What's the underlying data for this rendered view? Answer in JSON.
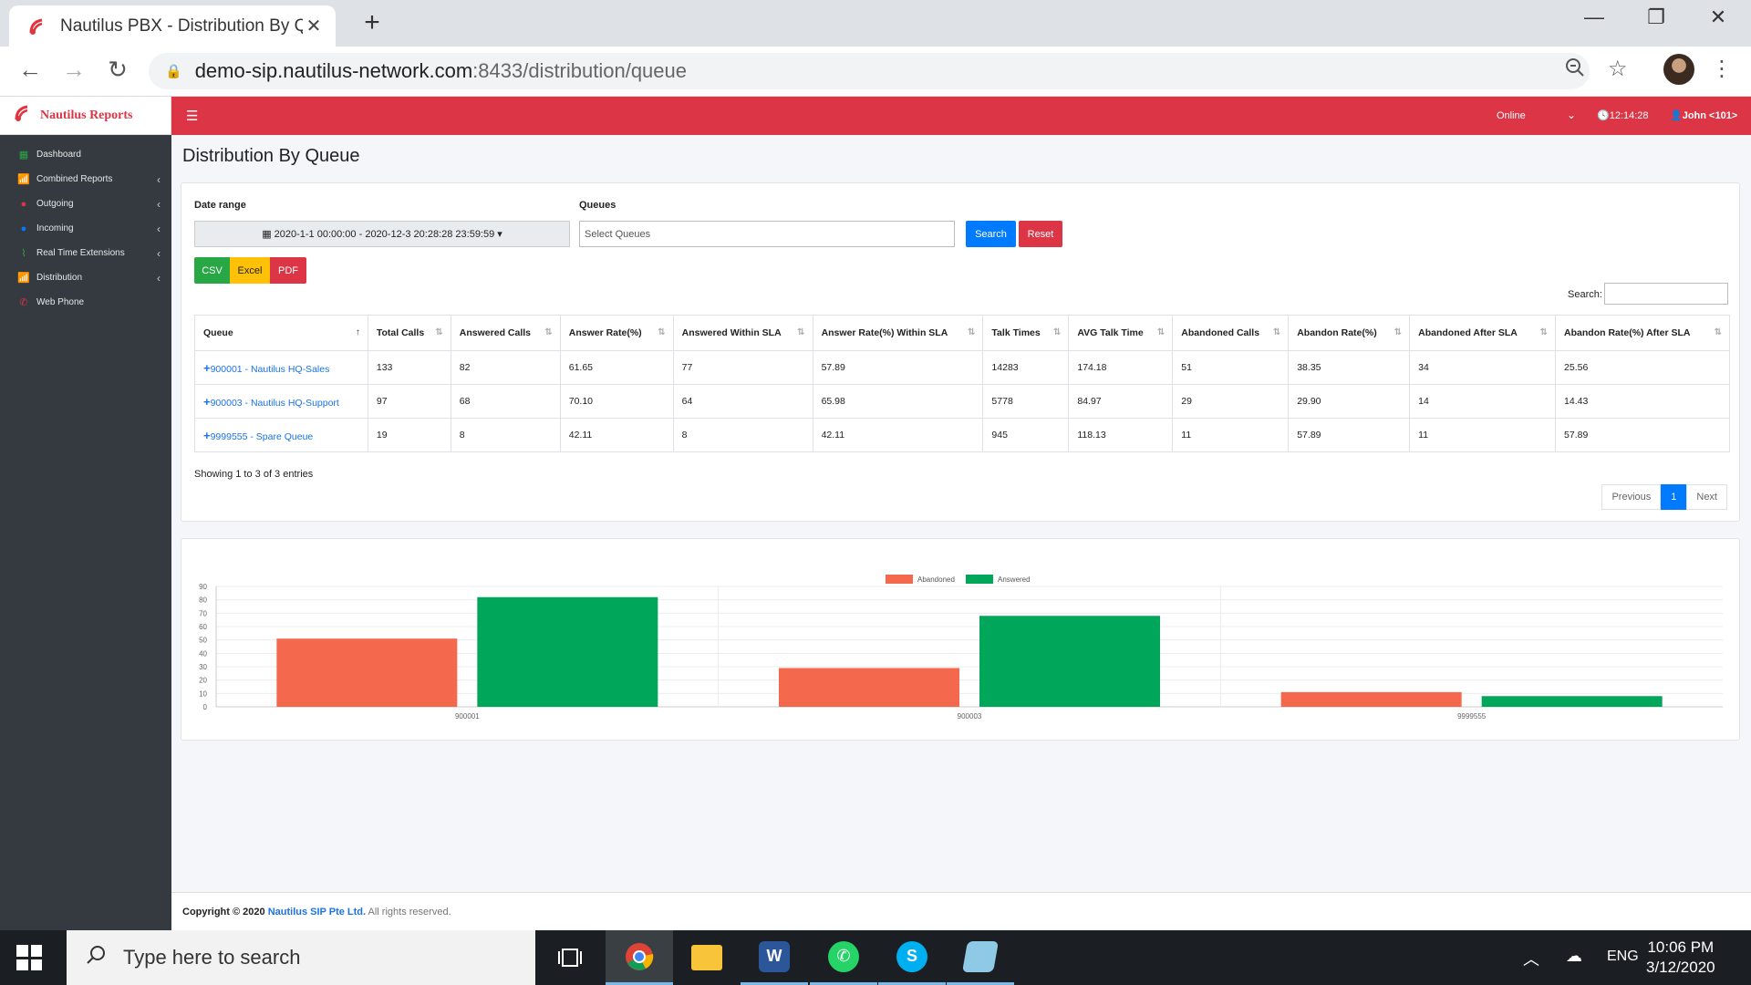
{
  "browser": {
    "tab_title": "Nautilus PBX - Distribution By Qu",
    "url_host": "demo-sip.nautilus-network.com",
    "url_path": ":8433/distribution/queue"
  },
  "app": {
    "brand": "Nautilus Reports",
    "status": "Online",
    "clock": "12:14:28",
    "user": "John <101>",
    "page_title": "Distribution By Queue"
  },
  "sidebar": {
    "items": [
      {
        "label": "Dashboard",
        "icon": "grid-icon",
        "color": "#28a745",
        "caret": false
      },
      {
        "label": "Combined Reports",
        "icon": "bar-chart-icon",
        "color": "#28a745",
        "caret": true
      },
      {
        "label": "Outgoing",
        "icon": "arrow-circle-icon",
        "color": "#dc3545",
        "caret": true
      },
      {
        "label": "Incoming",
        "icon": "arrow-circle-icon",
        "color": "#007bff",
        "caret": true
      },
      {
        "label": "Real Time Extensions",
        "icon": "pulse-icon",
        "color": "#28a745",
        "caret": true
      },
      {
        "label": "Distribution",
        "icon": "bar-chart-icon",
        "color": "#28a745",
        "caret": true
      },
      {
        "label": "Web Phone",
        "icon": "phone-icon",
        "color": "#dc3545",
        "caret": false
      }
    ]
  },
  "filters": {
    "date_label": "Date range",
    "date_value": "2020-1-1 00:00:00 - 2020-12-3 20:28:28 23:59:59",
    "queues_label": "Queues",
    "queues_placeholder": "Select Queues",
    "search_button": "Search",
    "reset_button": "Reset",
    "export": [
      "CSV",
      "Excel",
      "PDF"
    ],
    "search_label": "Search:"
  },
  "table": {
    "headers": [
      "Queue",
      "Total Calls",
      "Answered Calls",
      "Answer Rate(%)",
      "Answered Within SLA",
      "Answer Rate(%) Within SLA",
      "Talk Times",
      "AVG Talk Time",
      "Abandoned Calls",
      "Abandon Rate(%)",
      "Abandoned After SLA",
      "Abandon Rate(%) After SLA"
    ],
    "rows": [
      [
        "900001 - Nautilus HQ-Sales",
        "133",
        "82",
        "61.65",
        "77",
        "57.89",
        "14283",
        "174.18",
        "51",
        "38.35",
        "34",
        "25.56"
      ],
      [
        "900003 - Nautilus HQ-Support",
        "97",
        "68",
        "70.10",
        "64",
        "65.98",
        "5778",
        "84.97",
        "29",
        "29.90",
        "14",
        "14.43"
      ],
      [
        "9999555 - Spare Queue",
        "19",
        "8",
        "42.11",
        "8",
        "42.11",
        "945",
        "118.13",
        "11",
        "57.89",
        "11",
        "57.89"
      ]
    ],
    "showing": "Showing 1 to 3 of 3 entries",
    "pager": {
      "prev": "Previous",
      "page": "1",
      "next": "Next"
    }
  },
  "chart_data": {
    "type": "bar",
    "categories": [
      "900001",
      "900003",
      "9999555"
    ],
    "series": [
      {
        "name": "Abandoned",
        "color": "#f4694e",
        "values": [
          51,
          29,
          11
        ]
      },
      {
        "name": "Answered",
        "color": "#00a65a",
        "values": [
          82,
          68,
          8
        ]
      }
    ],
    "yticks": [
      0,
      10,
      20,
      30,
      40,
      50,
      60,
      70,
      80,
      90
    ],
    "ylim": [
      0,
      90
    ],
    "legend": "top-center",
    "grid": true
  },
  "footer": {
    "prefix": "Copyright © 2020",
    "company": "Nautilus SIP Pte Ltd.",
    "suffix": "All rights reserved."
  },
  "taskbar": {
    "search_placeholder": "Type here to search",
    "lang": "ENG",
    "time": "10:06 PM",
    "date": "3/12/2020"
  }
}
